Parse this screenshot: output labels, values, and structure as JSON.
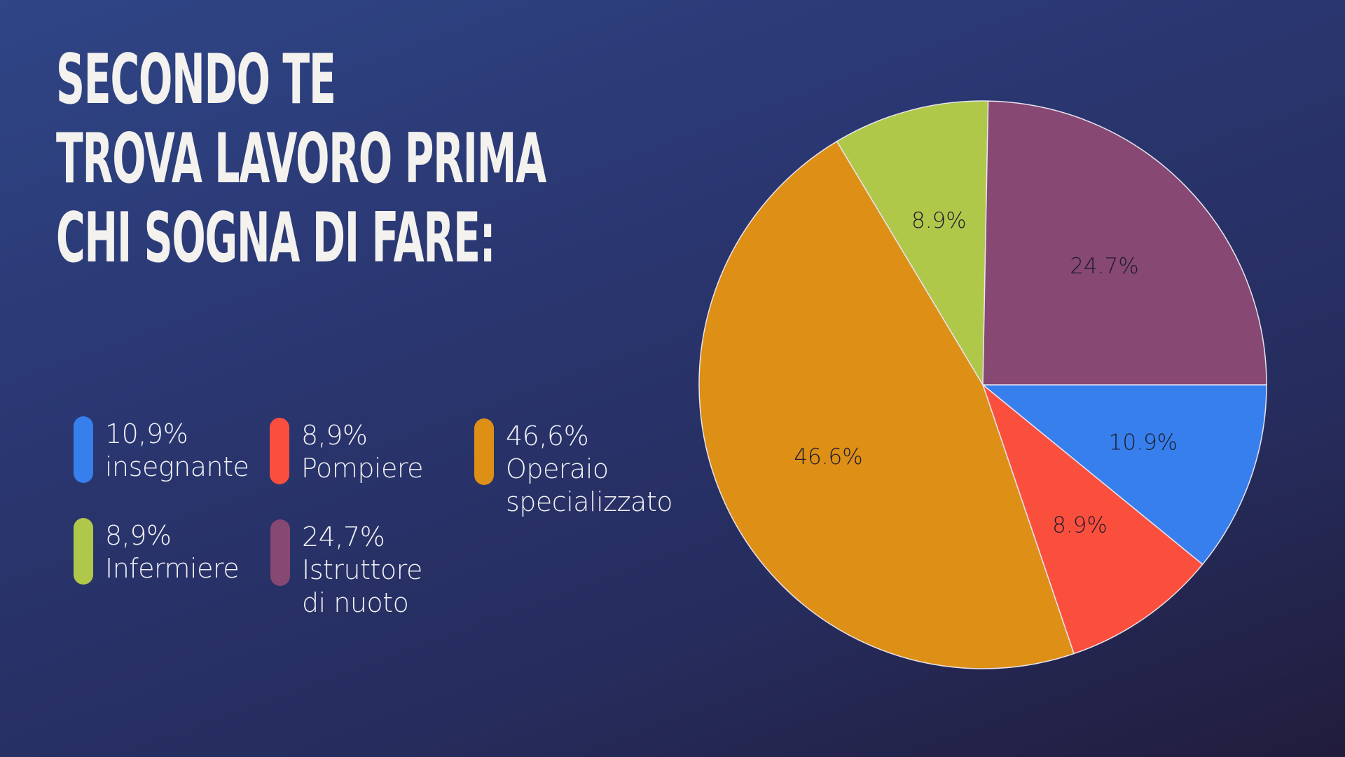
{
  "title": {
    "lines": [
      "SECONDO TE",
      "TROVA LAVORO PRIMA",
      "CHI SOGNA DI FARE:"
    ]
  },
  "legend": [
    {
      "percent": "10,9%",
      "label_lines": [
        "insegnante"
      ],
      "color": "#377fec"
    },
    {
      "percent": "8,9%",
      "label_lines": [
        "Pompiere"
      ],
      "color": "#fb4f3e"
    },
    {
      "percent": "46,6%",
      "label_lines": [
        "Operaio",
        "specializzato"
      ],
      "color": "#de8f16"
    },
    {
      "percent": "8,9%",
      "label_lines": [
        "Infermiere"
      ],
      "color": "#afc84a"
    },
    {
      "percent": "24,7%",
      "label_lines": [
        "Istruttore",
        "di nuoto"
      ],
      "color": "#874874"
    }
  ],
  "chart_data": {
    "type": "pie",
    "title": "SECONDO TE TROVA LAVORO PRIMA CHI SOGNA DI FARE:",
    "categories": [
      "insegnante",
      "Pompiere",
      "Operaio specializzato",
      "Infermiere",
      "Istruttore di nuoto"
    ],
    "values": [
      10.9,
      8.9,
      46.6,
      8.9,
      24.7
    ],
    "data_labels": [
      "10.9%",
      "8.9%",
      "46.6%",
      "8.9%",
      "24.7%"
    ],
    "colors": [
      "#377fec",
      "#fb4f3e",
      "#de8f16",
      "#afc84a",
      "#874874"
    ],
    "start_angle": "3 o'clock, clockwise",
    "legend_position": "left"
  }
}
